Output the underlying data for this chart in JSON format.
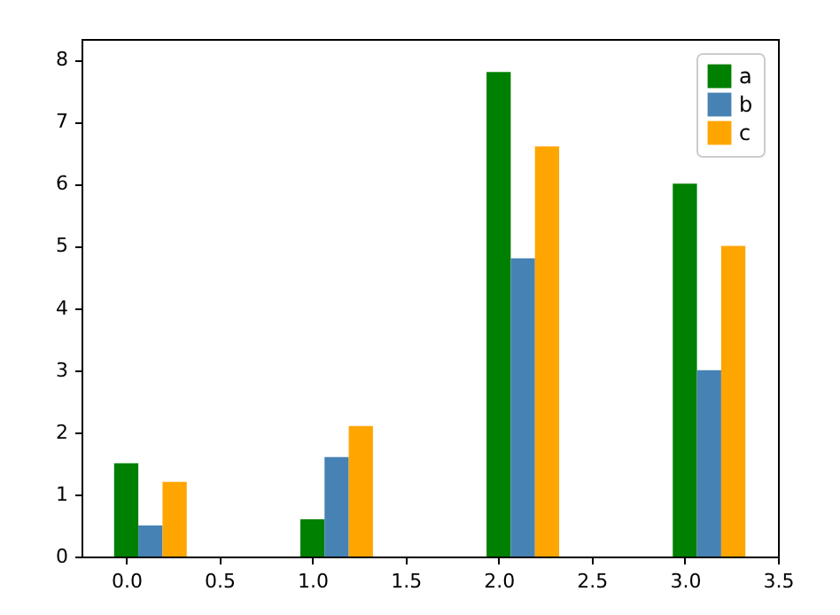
{
  "chart_data": {
    "type": "bar",
    "xlim": [
      -0.24,
      3.5
    ],
    "xticks": [
      {
        "value": 0,
        "label": "0.0"
      },
      {
        "value": 0.5,
        "label": "0.5"
      },
      {
        "value": 1,
        "label": "1.0"
      },
      {
        "value": 1.5,
        "label": "1.5"
      },
      {
        "value": 2,
        "label": "2.0"
      },
      {
        "value": 2.5,
        "label": "2.5"
      },
      {
        "value": 3,
        "label": "3.0"
      },
      {
        "value": 3.5,
        "label": "3.5"
      }
    ],
    "ylim": [
      0,
      8.33
    ],
    "yticks": [
      0,
      1,
      2,
      3,
      4,
      5,
      6,
      7,
      8
    ],
    "legend": "top right",
    "grid": false,
    "series": [
      {
        "name": "a",
        "color": "#008000",
        "x": [
          0,
          1,
          2,
          3
        ],
        "values": [
          1.5,
          0.6,
          7.8,
          6.0
        ]
      },
      {
        "name": "b",
        "color": "#4682b4",
        "x": [
          0.13,
          1.13,
          2.13,
          3.13
        ],
        "values": [
          0.5,
          1.6,
          4.8,
          3.0
        ]
      },
      {
        "name": "c",
        "color": "#ffa500",
        "x": [
          0.26,
          1.26,
          2.26,
          3.26
        ],
        "values": [
          1.2,
          2.1,
          6.6,
          5.0
        ]
      }
    ]
  }
}
